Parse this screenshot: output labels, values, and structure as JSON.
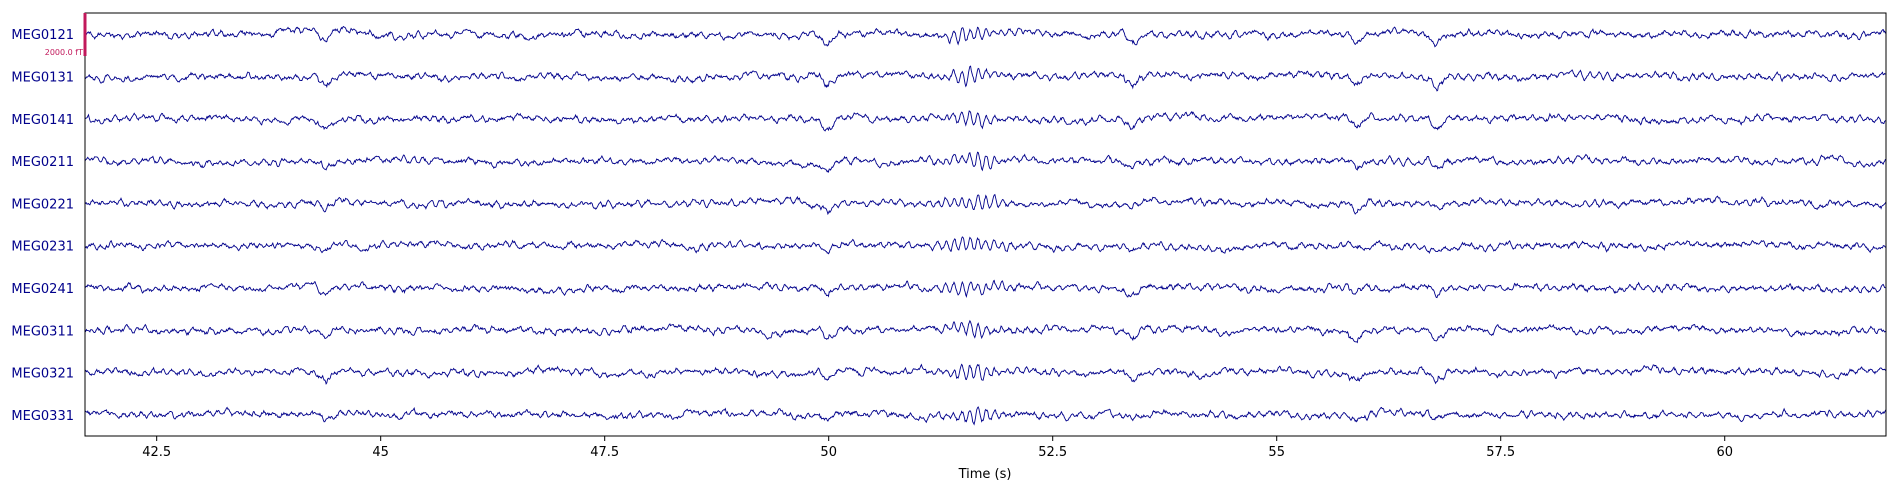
{
  "chart_data": {
    "type": "line",
    "xlabel": "Time (s)",
    "xlim": [
      41.7,
      61.8
    ],
    "xticks": [
      42.5,
      45,
      47.5,
      50,
      52.5,
      55,
      57.5,
      60
    ],
    "xtick_labels": [
      "42.5",
      "45",
      "47.5",
      "50",
      "52.5",
      "55",
      "57.5",
      "60"
    ],
    "scale_bar_label": "2000.0 fT",
    "channels": [
      "MEG0121",
      "MEG0131",
      "MEG0141",
      "MEG0211",
      "MEG0221",
      "MEG0231",
      "MEG0241",
      "MEG0311",
      "MEG0321",
      "MEG0331"
    ],
    "event_times": [
      44.4,
      50.0,
      53.4,
      55.9,
      56.8
    ],
    "burst_times": [
      51.6
    ],
    "colors": {
      "trace": "#00008b",
      "channel_label": "#00008b",
      "scale_bar": "#c2185b",
      "axes": "#000000"
    }
  }
}
